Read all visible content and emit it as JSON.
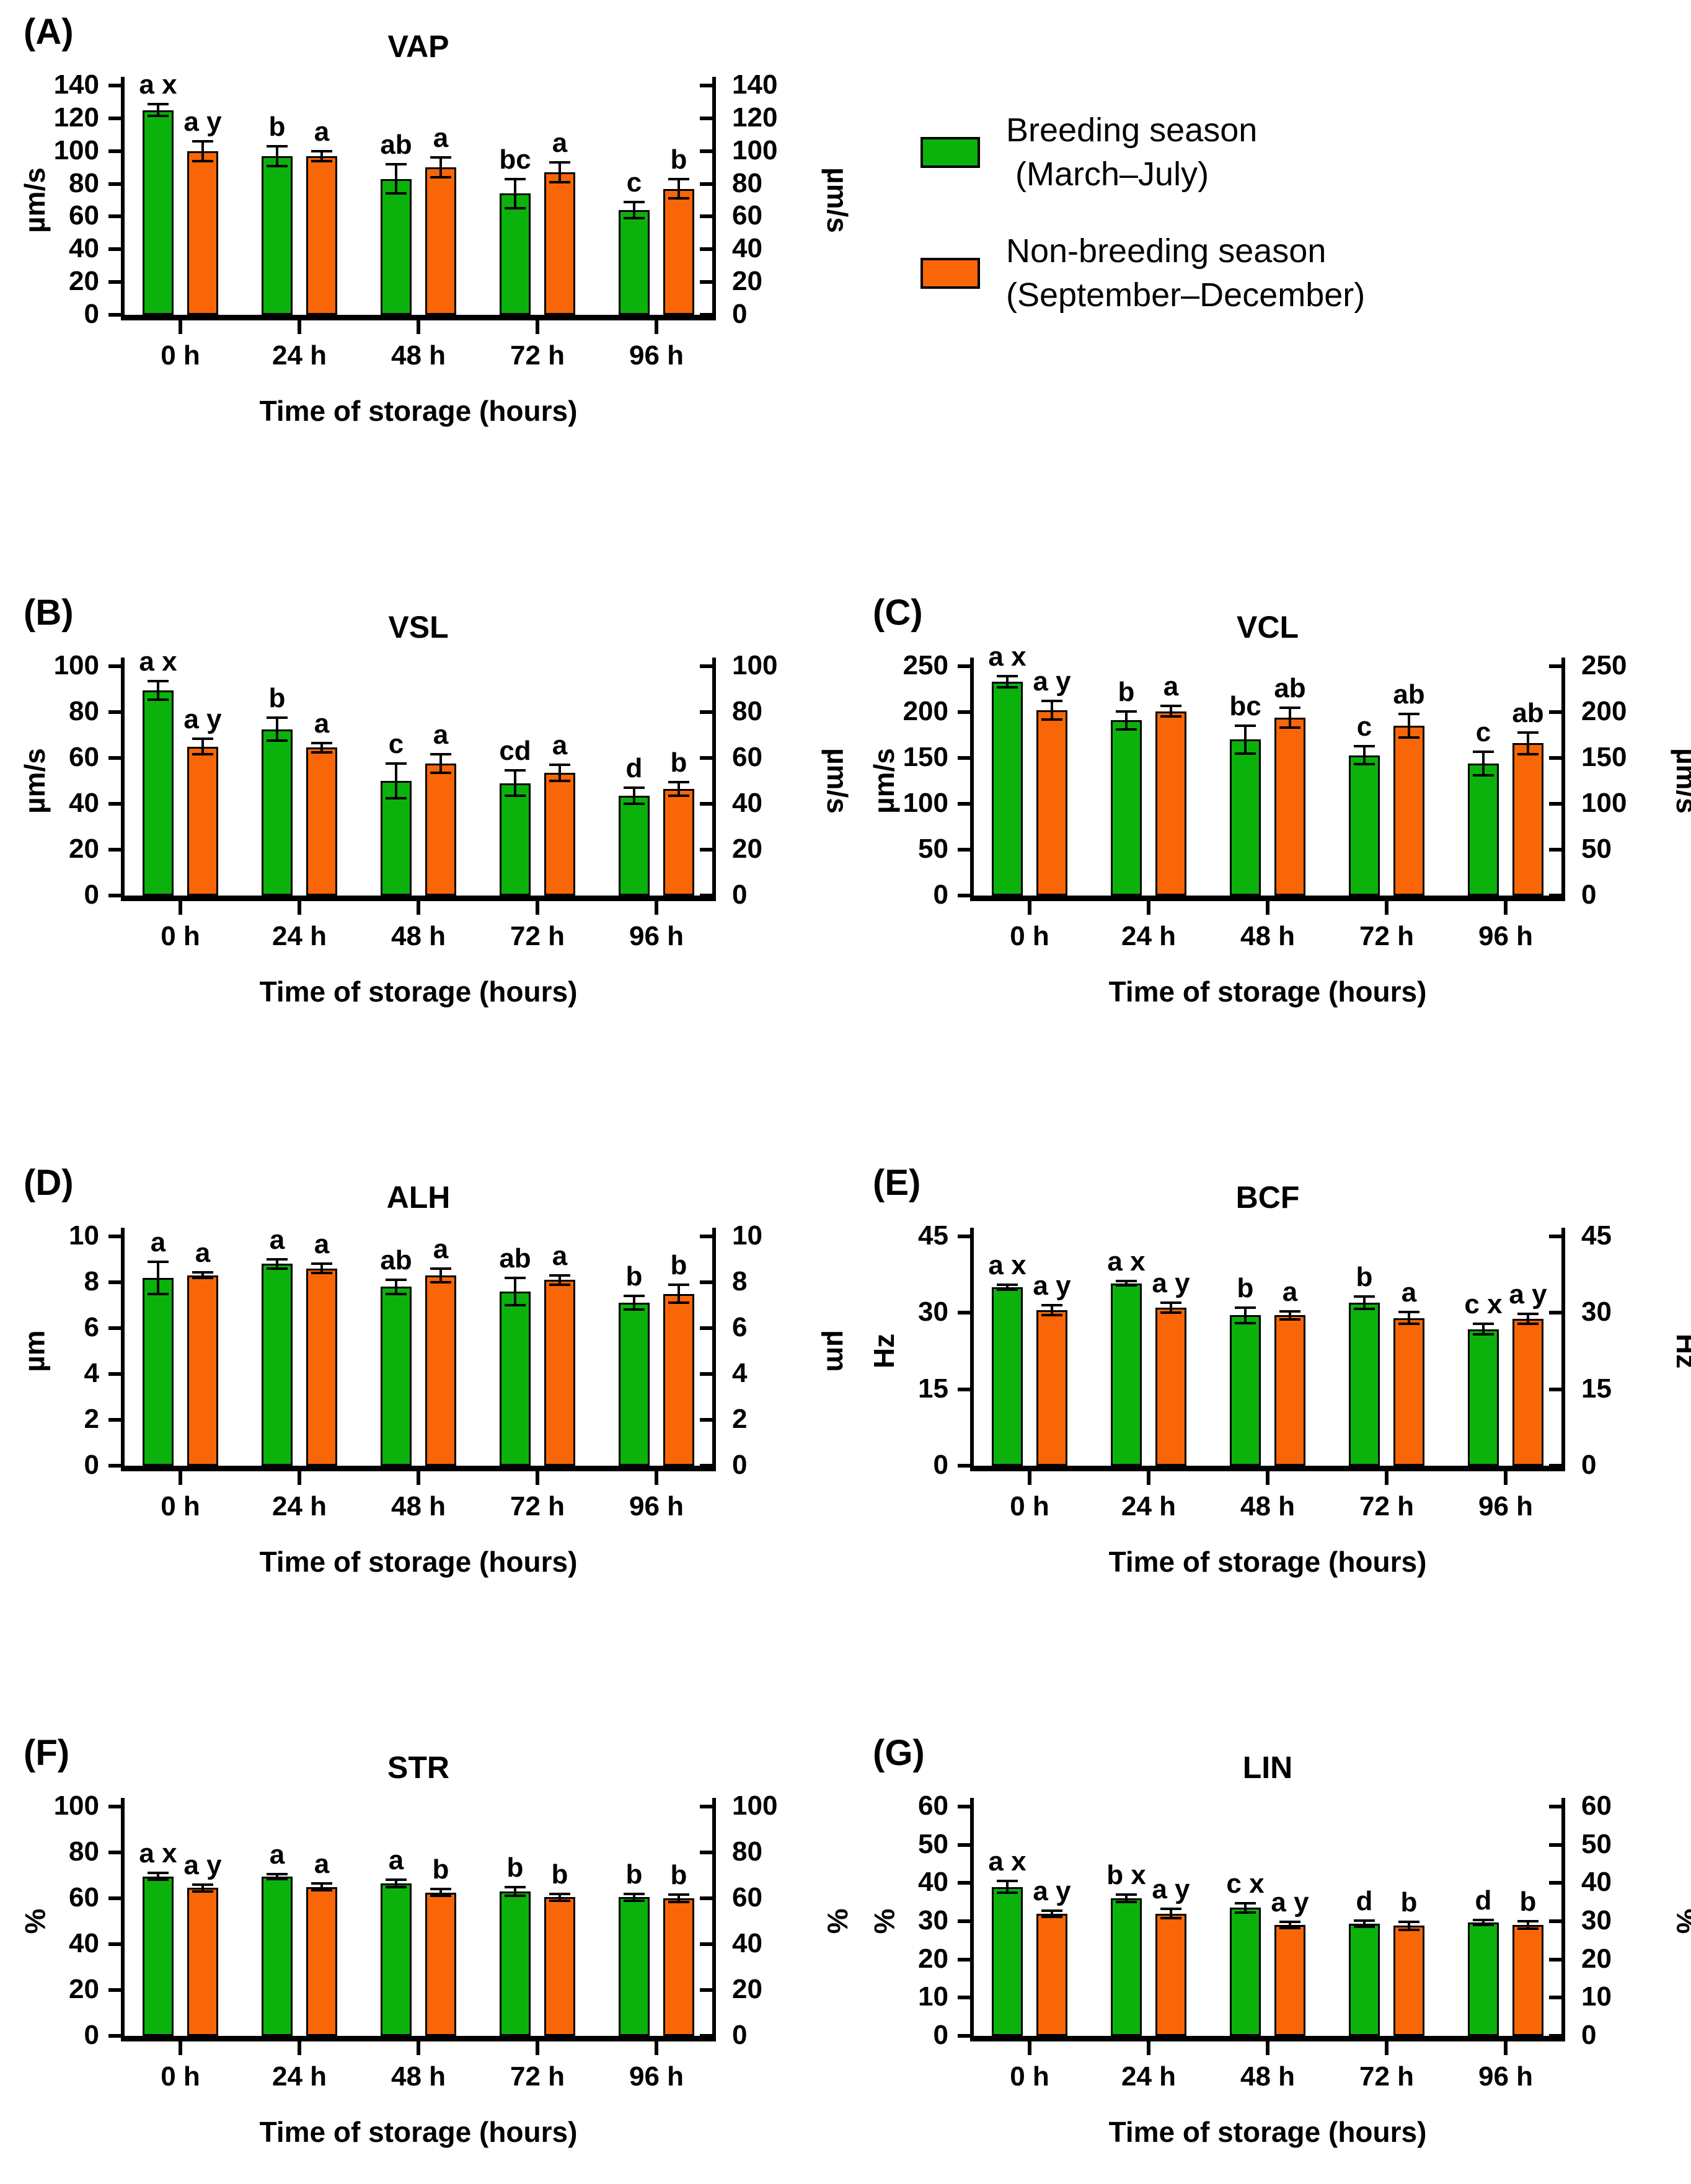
{
  "figure": {
    "xlabel": "Time of storage (hours)",
    "categories": [
      "0 h",
      "24 h",
      "48 h",
      "72 h",
      "96 h"
    ],
    "colors": {
      "breeding": "#0cb20c",
      "non_breeding": "#f96607",
      "axis": "#000000"
    },
    "legend": {
      "items": [
        {
          "line1": "Breeding season",
          "line2": " (March–July)",
          "color": "#0cb20c"
        },
        {
          "line1": "Non-breeding season",
          "line2": "(September–December)",
          "color": "#f96607"
        }
      ]
    }
  },
  "chart_data": [
    {
      "type": "bar",
      "panel": "(A)",
      "title": "VAP",
      "ylabel": "µm/s",
      "xlabel": "Time of storage (hours)",
      "ylim": [
        0,
        140
      ],
      "ytick_step": 20,
      "grid": false,
      "legend_position": "top-right",
      "categories": [
        "0 h",
        "24 h",
        "48 h",
        "72 h",
        "96 h"
      ],
      "series": [
        {
          "name": "Breeding season (March–July)",
          "color": "#0cb20c",
          "values": [
            125,
            97,
            83,
            74,
            64
          ],
          "errors": [
            3.5,
            6,
            9,
            9,
            5
          ],
          "letters": [
            "a x",
            "b",
            "ab",
            "bc",
            "c"
          ]
        },
        {
          "name": "Non-breeding season (September–December)",
          "color": "#f96607",
          "values": [
            100,
            97,
            90,
            87,
            77
          ],
          "errors": [
            6,
            3,
            6,
            6,
            6
          ],
          "letters": [
            "a y",
            "a",
            "a",
            "a",
            "b"
          ]
        }
      ]
    },
    {
      "type": "bar",
      "panel": "(B)",
      "title": "VSL",
      "ylabel": "µm/s",
      "xlabel": "Time of storage (hours)",
      "ylim": [
        0,
        100
      ],
      "ytick_step": 20,
      "grid": false,
      "categories": [
        "0 h",
        "24 h",
        "48 h",
        "72 h",
        "96 h"
      ],
      "series": [
        {
          "name": "Breeding season (March–July)",
          "color": "#0cb20c",
          "values": [
            89.5,
            72.5,
            50,
            49,
            43.5
          ],
          "errors": [
            4,
            5,
            7.5,
            5.5,
            3.5
          ],
          "letters": [
            "a x",
            "b",
            "c",
            "cd",
            "d"
          ]
        },
        {
          "name": "Non-breeding season (September–December)",
          "color": "#f96607",
          "values": [
            65,
            64.5,
            57.5,
            53.5,
            46.5
          ],
          "errors": [
            3.5,
            2,
            4,
            3.5,
            3
          ],
          "letters": [
            "a y",
            "a",
            "a",
            "a",
            "b"
          ]
        }
      ]
    },
    {
      "type": "bar",
      "panel": "(C)",
      "title": "VCL",
      "ylabel": "µm/s",
      "xlabel": "Time of storage (hours)",
      "ylim": [
        0,
        250
      ],
      "ytick_step": 50,
      "grid": false,
      "categories": [
        "0 h",
        "24 h",
        "48 h",
        "72 h",
        "96 h"
      ],
      "series": [
        {
          "name": "Breeding season (March–July)",
          "color": "#0cb20c",
          "values": [
            233,
            191,
            170,
            153,
            144
          ],
          "errors": [
            6,
            10,
            15,
            10,
            13
          ],
          "letters": [
            "a x",
            "b",
            "bc",
            "c",
            "c"
          ]
        },
        {
          "name": "Non-breeding season (September–December)",
          "color": "#f96607",
          "values": [
            202,
            201,
            194,
            185,
            166
          ],
          "errors": [
            10,
            6,
            11,
            13,
            12
          ],
          "letters": [
            "a y",
            "a",
            "ab",
            "ab",
            "ab"
          ]
        }
      ]
    },
    {
      "type": "bar",
      "panel": "(D)",
      "title": "ALH",
      "ylabel": "µm",
      "xlabel": "Time of storage (hours)",
      "ylim": [
        0,
        10
      ],
      "ytick_step": 2,
      "grid": false,
      "categories": [
        "0 h",
        "24 h",
        "48 h",
        "72 h",
        "96 h"
      ],
      "series": [
        {
          "name": "Breeding season (March–July)",
          "color": "#0cb20c",
          "values": [
            8.2,
            8.8,
            7.8,
            7.6,
            7.1
          ],
          "errors": [
            0.7,
            0.2,
            0.3,
            0.6,
            0.3
          ],
          "letters": [
            "a",
            "a",
            "ab",
            "ab",
            "b"
          ]
        },
        {
          "name": "Non-breeding season (September–December)",
          "color": "#f96607",
          "values": [
            8.3,
            8.6,
            8.3,
            8.1,
            7.5
          ],
          "errors": [
            0.12,
            0.2,
            0.3,
            0.2,
            0.4
          ],
          "letters": [
            "a",
            "a",
            "a",
            "a",
            "b"
          ]
        }
      ]
    },
    {
      "type": "bar",
      "panel": "(E)",
      "title": "BCF",
      "ylabel": "Hz",
      "xlabel": "Time of storage (hours)",
      "ylim": [
        0,
        45
      ],
      "ytick_step": 15,
      "grid": false,
      "categories": [
        "0 h",
        "24 h",
        "48 h",
        "72 h",
        "96 h"
      ],
      "series": [
        {
          "name": "Breeding season (March–July)",
          "color": "#0cb20c",
          "values": [
            35,
            35.8,
            29.5,
            32,
            26.8
          ],
          "errors": [
            0.5,
            0.4,
            1.5,
            1.2,
            1.0
          ],
          "letters": [
            "a x",
            "a x",
            "b",
            "b",
            "c x"
          ]
        },
        {
          "name": "Non-breeding season (September–December)",
          "color": "#f96607",
          "values": [
            30.5,
            31,
            29.5,
            29,
            28.8
          ],
          "errors": [
            1.0,
            1.0,
            0.8,
            1.2,
            1.0
          ],
          "letters": [
            "a y",
            "a y",
            "a",
            "a",
            "a y"
          ]
        }
      ]
    },
    {
      "type": "bar",
      "panel": "(F)",
      "title": "STR",
      "ylabel": "%",
      "xlabel": "Time of storage (hours)",
      "ylim": [
        0,
        100
      ],
      "ytick_step": 20,
      "grid": false,
      "categories": [
        "0 h",
        "24 h",
        "48 h",
        "72 h",
        "96 h"
      ],
      "series": [
        {
          "name": "Breeding season (March–July)",
          "color": "#0cb20c",
          "values": [
            69.5,
            69.5,
            66.5,
            63,
            60.5
          ],
          "errors": [
            1.5,
            1.0,
            1.5,
            2.0,
            1.5
          ],
          "letters": [
            "a x",
            "a",
            "a",
            "b",
            "b"
          ]
        },
        {
          "name": "Non-breeding season (September–December)",
          "color": "#f96607",
          "values": [
            64.5,
            65,
            62.5,
            60.5,
            60
          ],
          "errors": [
            1.5,
            1.5,
            1.5,
            1.5,
            1.5
          ],
          "letters": [
            "a y",
            "a",
            "b",
            "b",
            "b"
          ]
        }
      ]
    },
    {
      "type": "bar",
      "panel": "(G)",
      "title": "LIN",
      "ylabel": "%",
      "xlabel": "Time of storage (hours)",
      "ylim": [
        0,
        60
      ],
      "ytick_step": 10,
      "grid": false,
      "categories": [
        "0 h",
        "24 h",
        "48 h",
        "72 h",
        "96 h"
      ],
      "series": [
        {
          "name": "Breeding season (March–July)",
          "color": "#0cb20c",
          "values": [
            39,
            36,
            33.5,
            29.3,
            29.7
          ],
          "errors": [
            1.5,
            1.0,
            1.2,
            0.8,
            0.7
          ],
          "letters": [
            "a x",
            "b x",
            "c x",
            "d",
            "d"
          ]
        },
        {
          "name": "Non-breeding season (September–December)",
          "color": "#f96607",
          "values": [
            32,
            32,
            29,
            28.8,
            29
          ],
          "errors": [
            0.8,
            1.2,
            0.8,
            1.0,
            1.0
          ],
          "letters": [
            "a y",
            "a y",
            "a y",
            "b",
            "b"
          ]
        }
      ]
    }
  ]
}
